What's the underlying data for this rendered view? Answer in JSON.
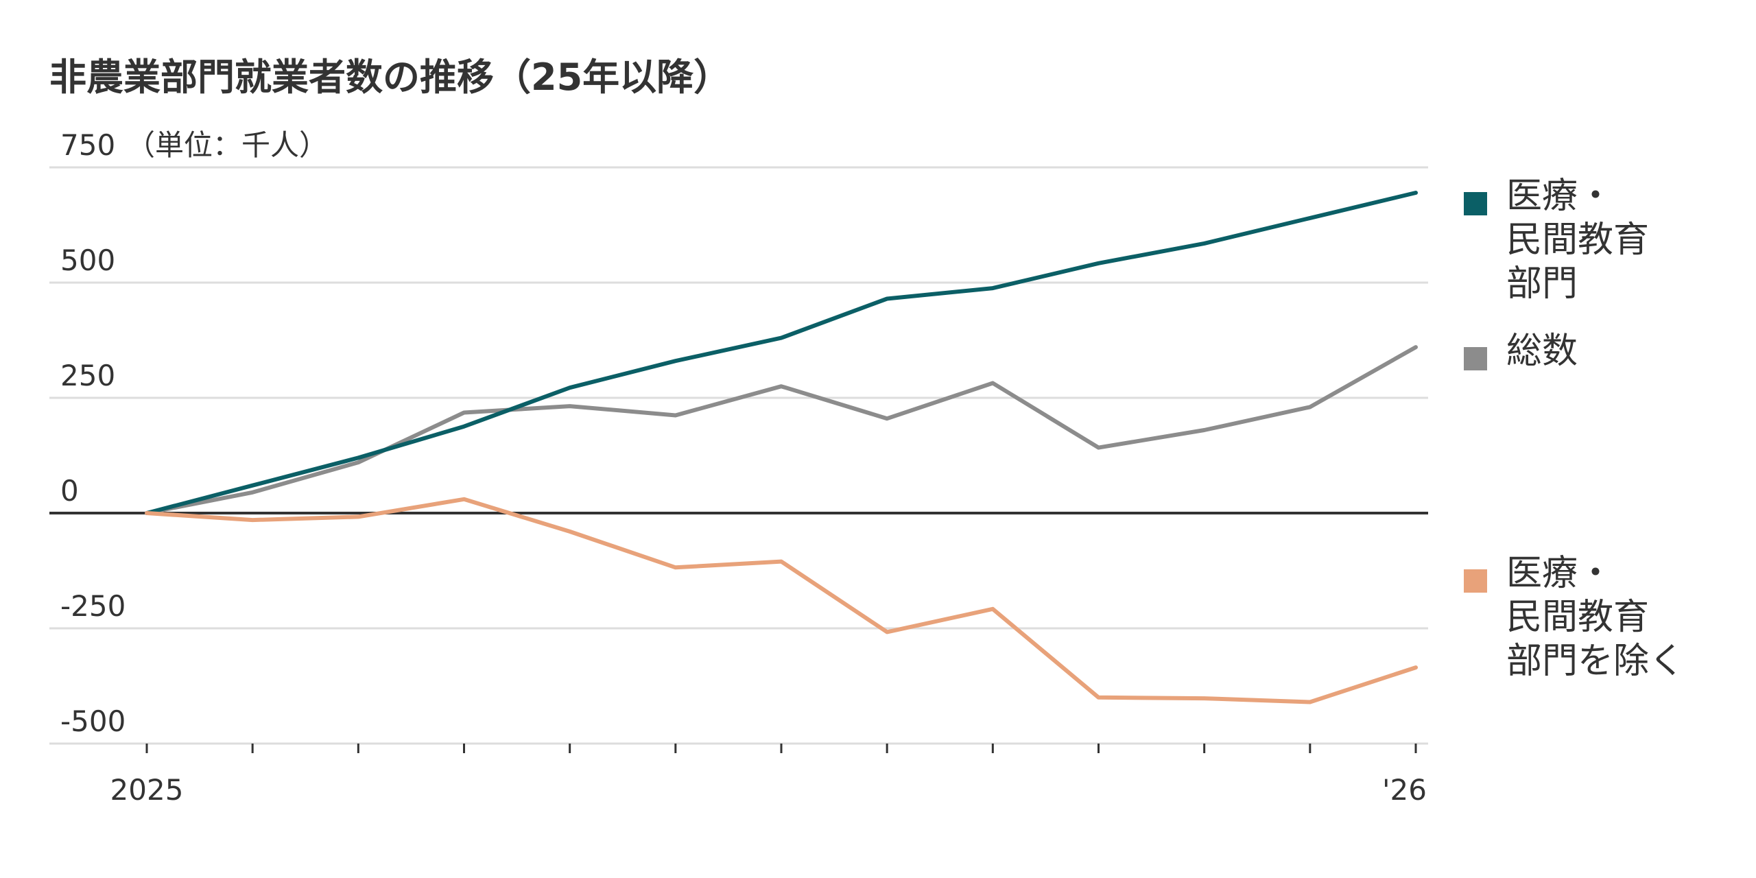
{
  "chart_data": {
    "type": "line",
    "title": "非農業部門就業者数の推移（25年以降）",
    "unit_label": "（単位：千人）",
    "x": [
      0,
      1,
      2,
      3,
      4,
      5,
      6,
      7,
      8,
      9,
      10,
      11,
      12
    ],
    "x_tick_labels": [
      "2025",
      "",
      "",
      "",
      "",
      "",
      "",
      "",
      "",
      "",
      "",
      "",
      "'26"
    ],
    "ylim": [
      -500,
      750
    ],
    "y_ticks": [
      -500,
      -250,
      0,
      250,
      500,
      750
    ],
    "y_tick_labels": [
      "-500",
      "-250",
      "0",
      "250",
      "500",
      "750"
    ],
    "grid": true,
    "legend_position": "right",
    "series": [
      {
        "name": "医療・\n民間教育\n部門",
        "color": "#0b5f66",
        "values": [
          0,
          60,
          120,
          188,
          272,
          330,
          380,
          465,
          488,
          542,
          585,
          640,
          695
        ]
      },
      {
        "name": "総数",
        "color": "#8c8c8c",
        "values": [
          0,
          45,
          110,
          218,
          232,
          212,
          275,
          205,
          282,
          142,
          180,
          230,
          360
        ]
      },
      {
        "name": "医療・\n民間教育\n部門を除く",
        "color": "#e8a27a",
        "values": [
          0,
          -15,
          -8,
          30,
          -40,
          -118,
          -105,
          -258,
          -208,
          -400,
          -402,
          -410,
          -335
        ]
      }
    ]
  }
}
